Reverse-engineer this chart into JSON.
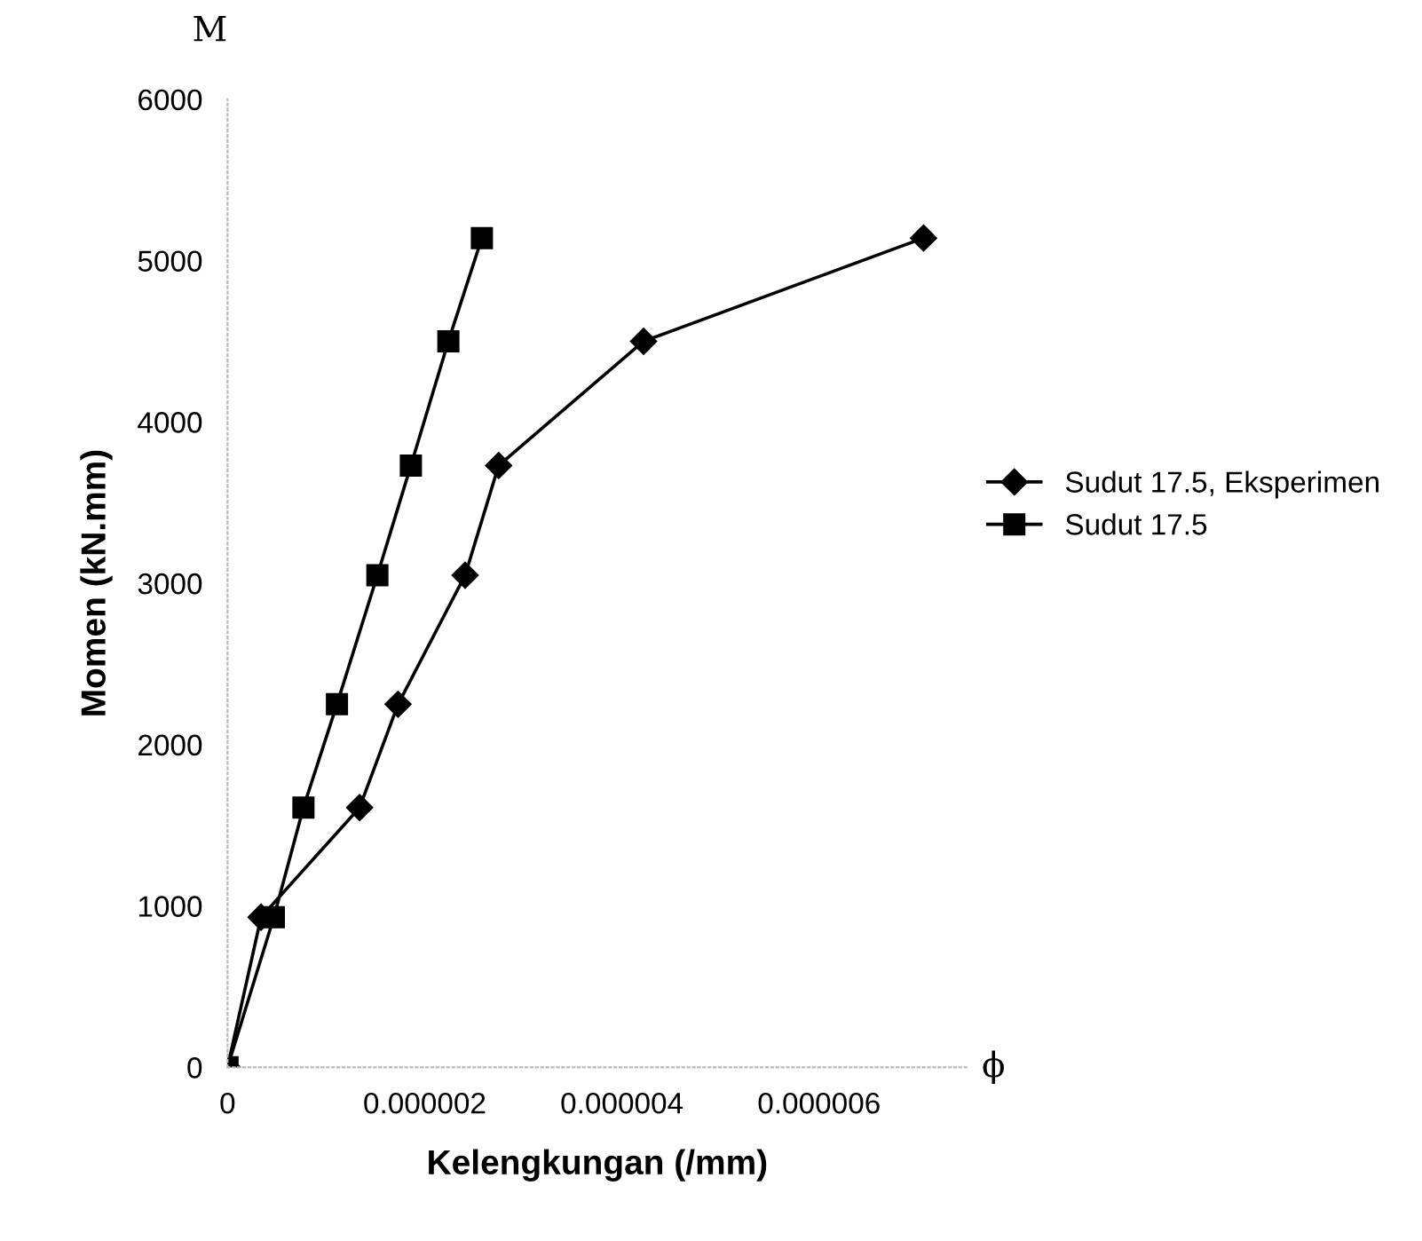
{
  "chart_data": {
    "type": "line",
    "xlabel": "Kelengkungan (/mm)",
    "ylabel": "Momen (kN.mm)",
    "annotations": [
      "M",
      "ϕ"
    ],
    "xlim": [
      0,
      7.5e-06
    ],
    "xticks": [
      0,
      {
        "value": 2e-06,
        "label": "0.000002"
      },
      {
        "value": 4e-06,
        "label": "0.000004"
      },
      {
        "value": 6e-06,
        "label": "0.000006"
      }
    ],
    "ylim": [
      0,
      6000
    ],
    "yticks": [
      0,
      1000,
      2000,
      3000,
      4000,
      5000,
      6000
    ],
    "grid": false,
    "legend": "right",
    "line_style": "solid",
    "series": [
      {
        "name": "Sudut 17.5, Eksperimen",
        "color": "#000000",
        "marker": "diamond",
        "x": [
          0,
          3.4e-07,
          1.34e-06,
          1.73e-06,
          2.41e-06,
          2.75e-06,
          4.22e-06,
          7.06e-06
        ],
        "values": [
          0,
          930,
          1610,
          2250,
          3050,
          3730,
          4500,
          5140
        ]
      },
      {
        "name": "Sudut 17.5",
        "color": "#000000",
        "marker": "square",
        "x": [
          0,
          4.7e-07,
          7.7e-07,
          1.11e-06,
          1.52e-06,
          1.86e-06,
          2.24e-06,
          2.58e-06
        ],
        "values": [
          0,
          930,
          1610,
          2250,
          3050,
          3730,
          4500,
          5140
        ]
      }
    ]
  }
}
